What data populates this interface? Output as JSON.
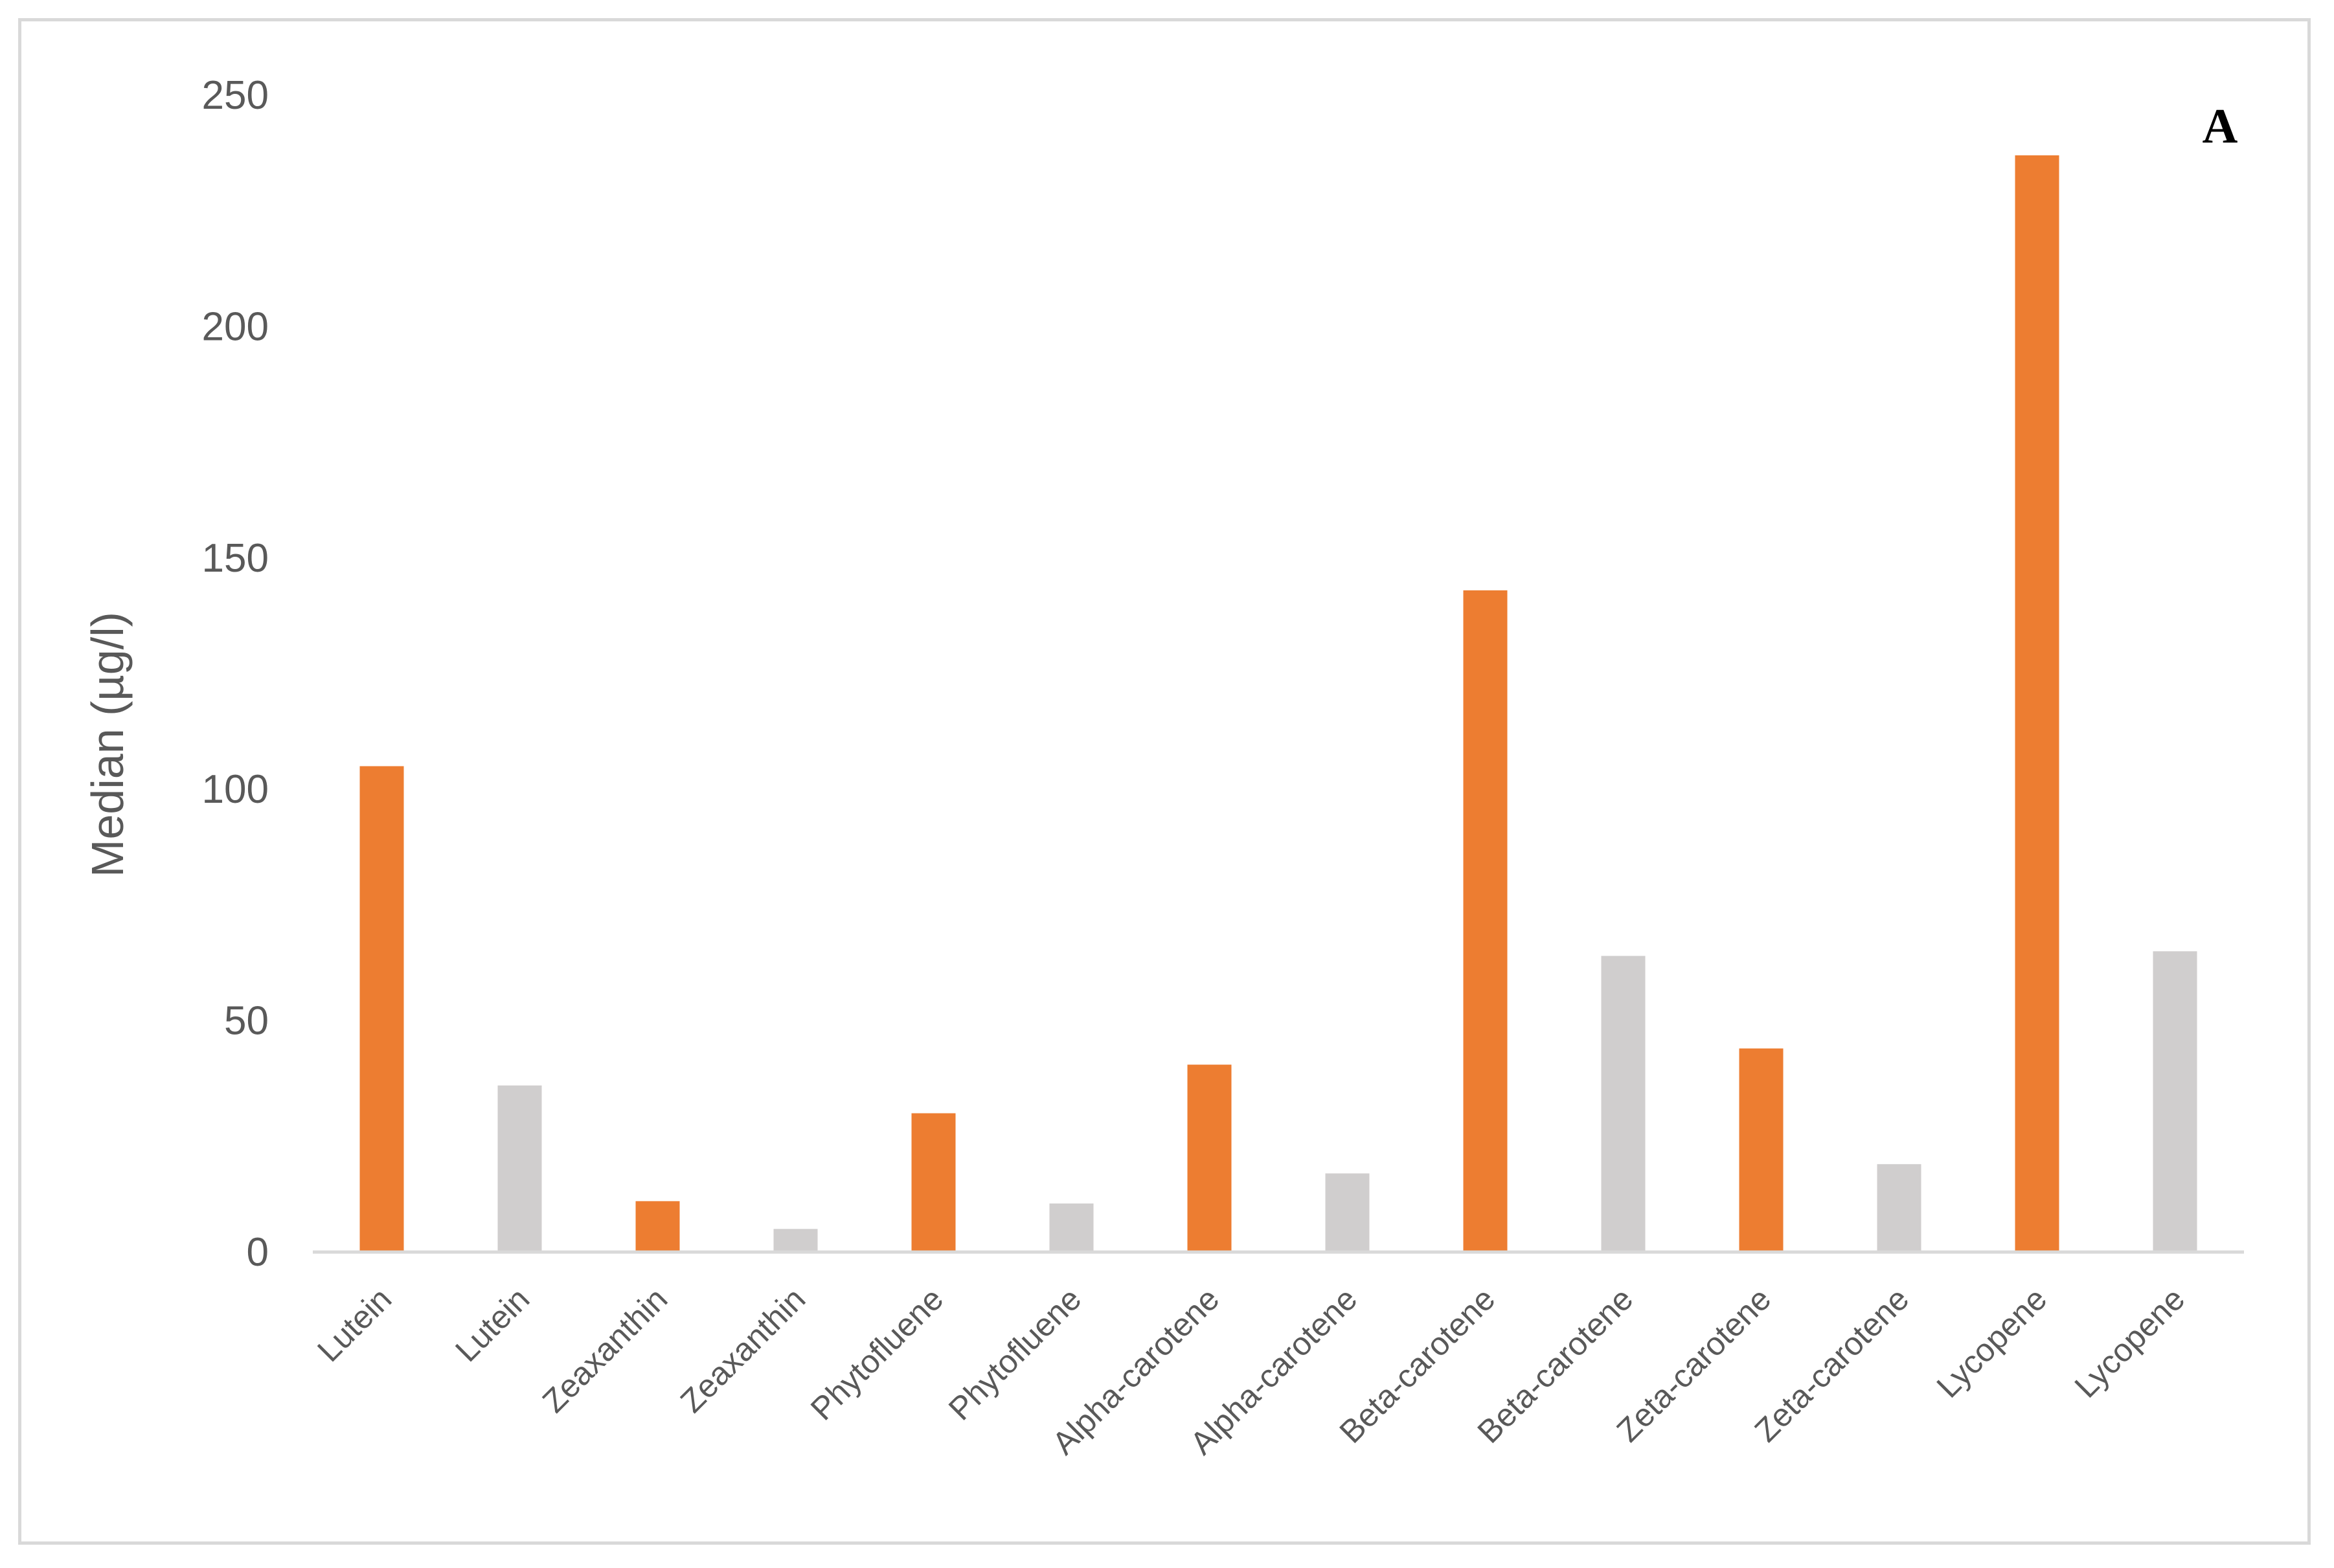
{
  "chart_data": {
    "type": "bar",
    "title": "",
    "panel_label": "A",
    "xlabel": "",
    "ylabel": "Median (µg/l)",
    "ylim": [
      0,
      250
    ],
    "yticks": [
      "0",
      "50",
      "100",
      "150",
      "200",
      "250"
    ],
    "grid": false,
    "legend": "none",
    "categories": [
      "Lutein",
      "Lutein",
      "Zeaxanthin",
      "Zeaxanthin",
      "Phytofluene",
      "Phytofluene",
      "Alpha-carotene",
      "Alpha-carotene",
      "Beta-carotene",
      "Beta-carotene",
      "Zeta-carotene",
      "Zeta-carotene",
      "Lycopene",
      "Lycopene"
    ],
    "values": [
      105,
      36,
      11,
      5,
      30,
      10.5,
      40.5,
      17,
      143,
      64,
      44,
      19,
      237,
      65
    ],
    "colors": [
      "#ed7d31",
      "#d0cece",
      "#ed7d31",
      "#d0cece",
      "#ed7d31",
      "#d0cece",
      "#ed7d31",
      "#d0cece",
      "#ed7d31",
      "#d0cece",
      "#ed7d31",
      "#d0cece",
      "#ed7d31",
      "#d0cece"
    ],
    "axis_color": "#d9d9d9",
    "text_color": "#595959"
  }
}
